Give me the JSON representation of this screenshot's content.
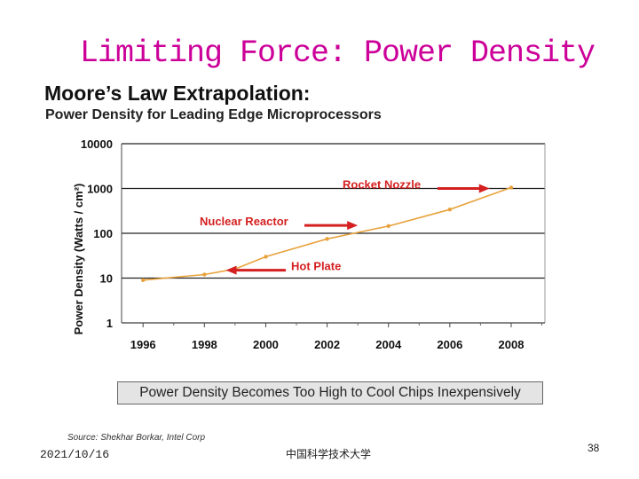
{
  "slide": {
    "title": "Limiting Force: Power Density",
    "date": "2021/10/16",
    "institution": "中国科学技术大学",
    "page_number": "38"
  },
  "figure": {
    "heading": "Moore’s Law Extrapolation:",
    "subheading": "Power Density for Leading Edge Microprocessors",
    "banner": "Power Density Becomes Too High to Cool Chips Inexpensively",
    "source": "Source:  Shekhar Borkar, Intel Corp"
  },
  "colors": {
    "title": "#cc0099",
    "series": "#e8a23c",
    "annotation": "#d42020"
  },
  "chart_data": {
    "type": "line",
    "title": "Power Density for Leading Edge Microprocessors",
    "xlabel": "",
    "ylabel": "Power Density (Watts / cm²)",
    "yscale": "log",
    "ylim": [
      1,
      10000
    ],
    "xlim": [
      1995.3,
      2009.1
    ],
    "x_ticks": [
      1996,
      1998,
      2000,
      2002,
      2004,
      2006,
      2008
    ],
    "y_ticks": [
      {
        "value": 1,
        "label": "1"
      },
      {
        "value": 10,
        "label": "10"
      },
      {
        "value": 100,
        "label": "100"
      },
      {
        "value": 1000,
        "label": "1000"
      },
      {
        "value": 10000,
        "label": "10000"
      }
    ],
    "series": [
      {
        "name": "Power Density",
        "x": [
          1996,
          1998,
          1999,
          2000,
          2002,
          2004,
          2006,
          2008
        ],
        "y": [
          9,
          12,
          16,
          30,
          75,
          145,
          340,
          1050
        ]
      }
    ],
    "annotations": [
      {
        "label": "Rocket Nozzle",
        "value": 1000,
        "arrow_to_year": 2007.3
      },
      {
        "label": "Nuclear Reactor",
        "value": 150,
        "arrow_to_year": 2003
      },
      {
        "label": "Hot Plate",
        "value": 15,
        "arrow_to_year": 1998.7
      }
    ]
  }
}
